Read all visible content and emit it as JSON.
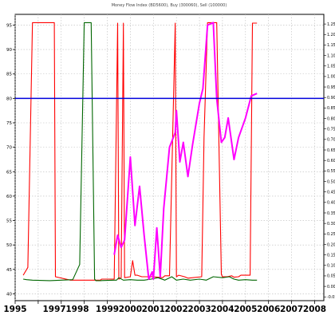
{
  "chart_data": {
    "type": "line",
    "title": "Money Flow Index (BD5600), Buy (300060), Sell (100000)",
    "xlabel": "",
    "ylabel": "",
    "xlim": [
      1995.0,
      2008.4
    ],
    "ylim": [
      38.6,
      97.2
    ],
    "right_ylim": [
      -0.068,
      1.296
    ],
    "x_ticks": [
      1995,
      1996,
      1997,
      1998,
      1999,
      2000,
      2001,
      2002,
      2003,
      2004,
      2005,
      2006,
      2007,
      2008
    ],
    "x_tick_labels": [
      "1995",
      "1997",
      "1998",
      "1999",
      "2000",
      "2001",
      "2002",
      "2003",
      "2004",
      "2005",
      "2006",
      "2007",
      "2008"
    ],
    "x_tick_label_years": [
      1995,
      1996.7,
      1997.7,
      1999,
      2000,
      2001,
      2002,
      2003,
      2004,
      2005,
      2006,
      2007,
      2008
    ],
    "left_ticks": [
      40,
      45,
      50,
      55,
      60,
      65,
      70,
      75,
      80,
      85,
      90,
      95
    ],
    "right_ticks": [
      "1.25",
      "1.20",
      "1.15",
      "1.10",
      "1.05",
      "1.00",
      "0.95",
      "0.90",
      "0.85",
      "0.80",
      "0.75",
      "0.70",
      "0.65",
      "0.60",
      "0.55",
      "0.50",
      "0.45",
      "0.40",
      "0.35",
      "0.30",
      "0.25",
      "0.20",
      "0.15",
      "0.10",
      "0.05",
      "0.00",
      "-0.05"
    ],
    "grid": true,
    "legend": "none",
    "reference_line": {
      "y": 80.0,
      "color": "#0000dd"
    },
    "series": [
      {
        "color": "#ff0000",
        "x": [
          1995.35,
          1995.55,
          1995.75,
          1996.6,
          1996.7,
          1996.75,
          1997.4,
          1998.7,
          1998.75,
          1999.0,
          1999.3,
          1999.45,
          1999.5,
          1999.6,
          1999.7,
          1999.75,
          2000.0,
          2000.1,
          2000.2,
          2000.3,
          2000.5,
          2001.0,
          2001.4,
          2001.5,
          2001.7,
          2001.95,
          2002.0,
          2002.1,
          2002.35,
          2002.5,
          2003.1,
          2003.2,
          2003.35,
          2003.6,
          2003.75,
          2003.95,
          2004.0,
          2004.2,
          2004.4,
          2004.5,
          2004.7,
          2004.8,
          2005.2,
          2005.3,
          2005.5
        ],
        "y": [
          43.8,
          45.4,
          95.5,
          95.5,
          95.5,
          43.5,
          42.8,
          42.8,
          43.0,
          43.0,
          43.0,
          95.4,
          43.0,
          43.3,
          95.4,
          43.3,
          43.5,
          46.8,
          43.8,
          43.8,
          43.5,
          43.5,
          43.3,
          43.7,
          43.7,
          95.4,
          43.5,
          43.8,
          43.5,
          43.2,
          43.5,
          72.0,
          95.5,
          95.5,
          95.5,
          44.0,
          43.5,
          43.5,
          43.7,
          43.4,
          43.5,
          43.8,
          43.8,
          95.4,
          95.4
        ]
      },
      {
        "color": "#006600",
        "x": [
          1995.35,
          1995.5,
          1995.75,
          1996.5,
          1997.5,
          1997.8,
          1998.0,
          1998.05,
          1998.3,
          1998.45,
          1998.5,
          1998.7,
          1999.3,
          1999.4,
          1999.5,
          1999.7,
          2000.0,
          2000.3,
          2000.6,
          2000.9,
          2001.2,
          2001.5,
          2001.8,
          2002.0,
          2002.3,
          2002.6,
          2003.0,
          2003.3,
          2003.6,
          2004.0,
          2004.3,
          2004.5,
          2004.7,
          2005.0,
          2005.3,
          2005.5
        ],
        "y": [
          43.0,
          42.9,
          42.8,
          42.7,
          42.9,
          46.0,
          95.5,
          95.5,
          95.5,
          43.0,
          42.7,
          42.7,
          42.8,
          42.8,
          43.3,
          42.8,
          42.9,
          42.8,
          42.8,
          43.0,
          43.3,
          42.8,
          43.5,
          42.8,
          43.0,
          42.8,
          43.0,
          42.8,
          43.5,
          43.3,
          43.5,
          43.0,
          42.8,
          42.9,
          42.8,
          42.8
        ]
      },
      {
        "color": "#ff00ff",
        "x": [
          1999.3,
          1999.45,
          1999.6,
          1999.75,
          2000.0,
          2000.2,
          2000.4,
          2000.6,
          2000.8,
          2000.95,
          2001.0,
          2001.15,
          2001.3,
          2001.45,
          2001.7,
          2001.95,
          2002.0,
          2002.15,
          2002.3,
          2002.5,
          2002.7,
          2003.0,
          2003.15,
          2003.35,
          2003.6,
          2003.75,
          2003.95,
          2004.1,
          2004.25,
          2004.5,
          2004.7,
          2005.0,
          2005.25,
          2005.5
        ],
        "y": [
          48.0,
          52.0,
          49.5,
          51.0,
          68.0,
          54.0,
          62.0,
          52.0,
          43.0,
          44.5,
          43.0,
          53.5,
          43.5,
          57.5,
          70.0,
          73.0,
          77.5,
          67.0,
          71.0,
          64.0,
          70.5,
          79.0,
          82.0,
          95.0,
          95.5,
          80.0,
          71.0,
          72.0,
          76.0,
          67.5,
          72.0,
          76.0,
          80.5,
          81.0
        ]
      }
    ]
  }
}
